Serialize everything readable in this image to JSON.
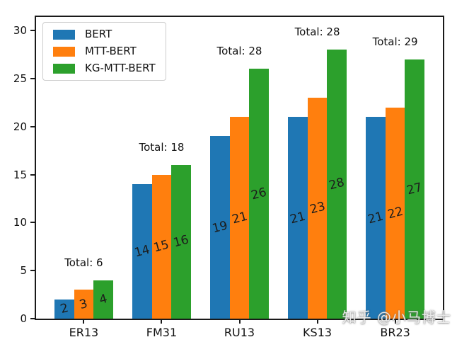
{
  "figure": {
    "watermark": "知乎 @小马博士"
  },
  "chart_data": {
    "type": "bar",
    "title": "",
    "xlabel": "",
    "ylabel": "",
    "categories": [
      "ER13",
      "FM31",
      "RU13",
      "KS13",
      "BR23"
    ],
    "series": [
      {
        "name": "BERT",
        "color": "#1f77b4",
        "values": [
          2,
          14,
          19,
          21,
          21
        ]
      },
      {
        "name": "MTT-BERT",
        "color": "#ff7f0e",
        "values": [
          3,
          15,
          21,
          23,
          22
        ]
      },
      {
        "name": "KG-MTT-BERT",
        "color": "#2ca02c",
        "values": [
          4,
          16,
          26,
          28,
          27
        ]
      }
    ],
    "total_labels": [
      "Total: 6",
      "Total: 18",
      "Total: 28",
      "Total: 28",
      "Total: 29"
    ],
    "yticks": [
      0,
      5,
      10,
      15,
      20,
      25,
      30
    ],
    "ylim": [
      0,
      31.4
    ],
    "grid": false,
    "legend_position": "upper left",
    "bar_value_labels_inside": true,
    "bar_label_rotation_deg": -15
  }
}
